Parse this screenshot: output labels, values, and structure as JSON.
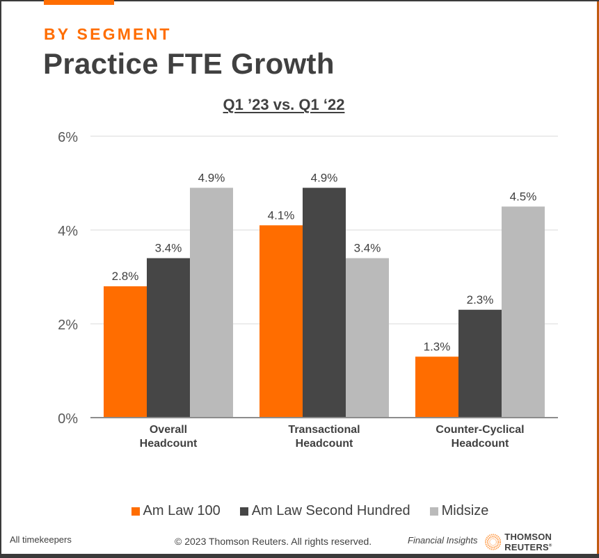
{
  "header": {
    "kicker": "BY SEGMENT",
    "title": "Practice FTE Growth",
    "subtitle": "Q1 ’23 vs. Q1 ‘22"
  },
  "colors": {
    "accent": "#ff6d00",
    "am_law_100": "#ff6d00",
    "am_law_second_hundred": "#464646",
    "midsize": "#bababa",
    "text": "#404040"
  },
  "chart_data": {
    "type": "bar",
    "title": "Q1 ’23 vs. Q1 ‘22",
    "xlabel": "",
    "ylabel": "",
    "ylim": [
      0,
      6
    ],
    "yticks": [
      0,
      2,
      4,
      6
    ],
    "ytick_labels": [
      "0%",
      "2%",
      "4%",
      "6%"
    ],
    "grid": true,
    "legend_position": "bottom",
    "categories": [
      [
        "Overall",
        "Headcount"
      ],
      [
        "Transactional",
        "Headcount"
      ],
      [
        "Counter-Cyclical",
        "Headcount"
      ]
    ],
    "series": [
      {
        "name": "Am Law 100",
        "color": "#ff6d00",
        "values": [
          2.8,
          4.1,
          1.3
        ],
        "labels": [
          "2.8%",
          "4.1%",
          "1.3%"
        ]
      },
      {
        "name": "Am Law Second Hundred",
        "color": "#464646",
        "values": [
          3.4,
          4.9,
          2.3
        ],
        "labels": [
          "3.4%",
          "4.9%",
          "2.3%"
        ]
      },
      {
        "name": "Midsize",
        "color": "#bababa",
        "values": [
          4.9,
          3.4,
          4.5
        ],
        "labels": [
          "4.9%",
          "3.4%",
          "4.5%"
        ]
      }
    ]
  },
  "footer": {
    "note": "All timekeepers",
    "copyright": "© 2023 Thomson Reuters. All rights reserved.",
    "product": "Financial Insights",
    "brand": "THOMSON REUTERS",
    "brand_mark": "®"
  }
}
